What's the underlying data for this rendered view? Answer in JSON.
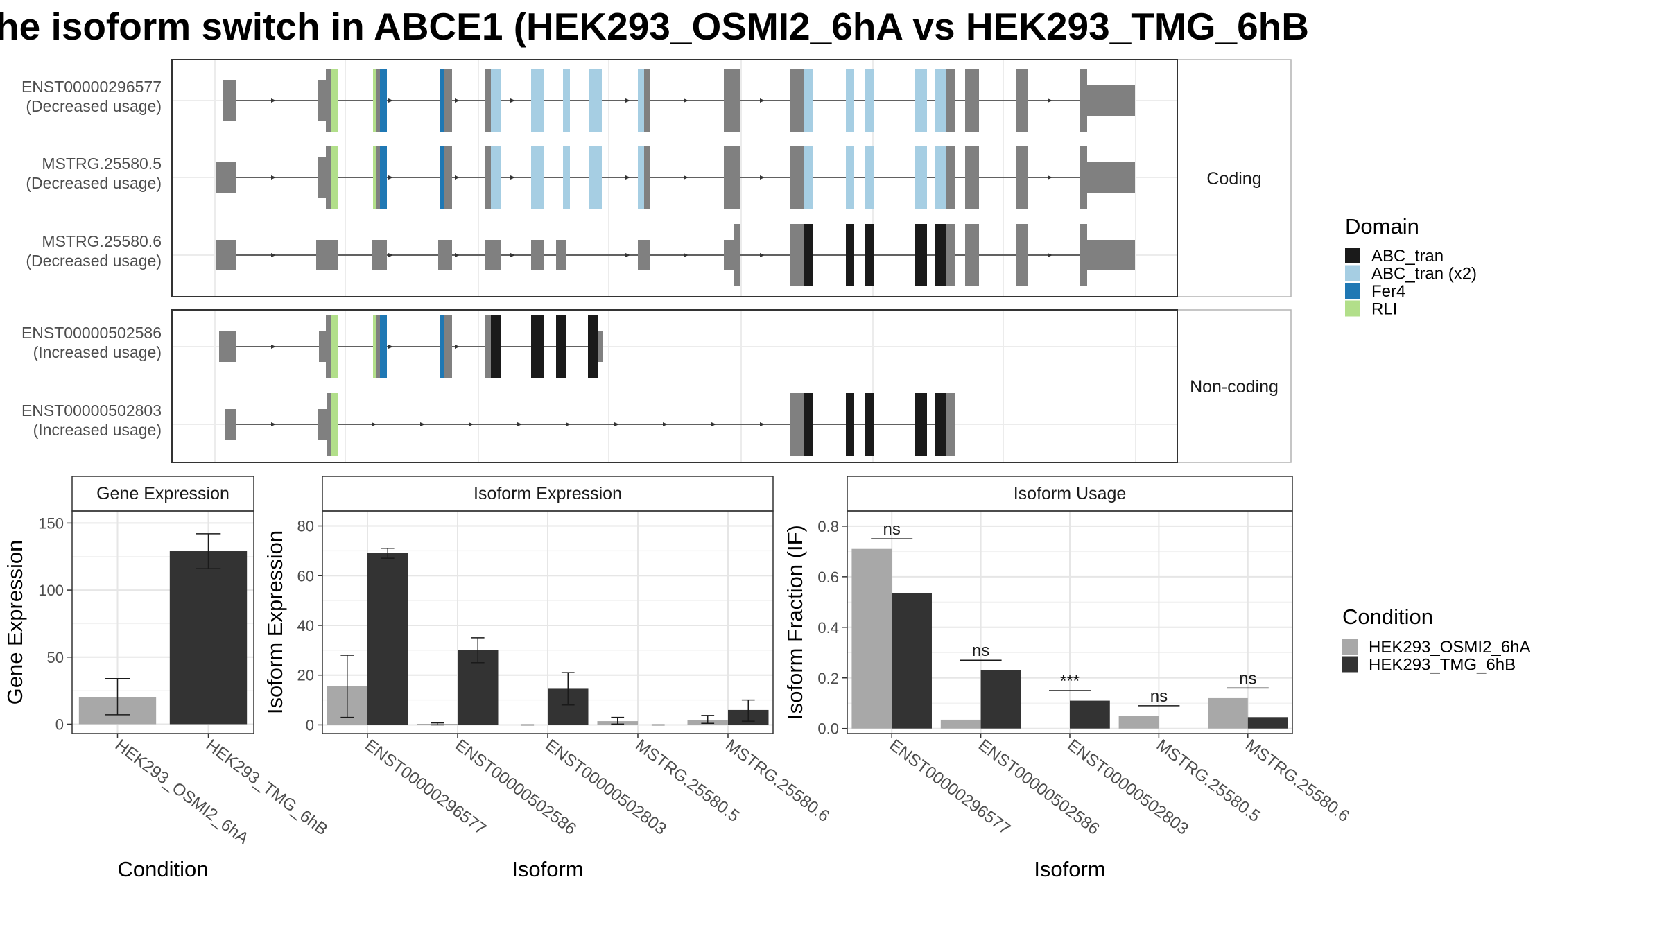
{
  "title": "he isoform switch in ABCE1 (HEK293_OSMI2_6hA vs HEK293_TMG_6hB",
  "colors": {
    "exon": "#808080",
    "ABC_tran": "#1a1a1a",
    "ABC_tran_x2": "#a6cee3",
    "Fer4": "#1f78b4",
    "RLI": "#b2df8a",
    "cond_A": "#a8a8a8",
    "cond_B": "#333333"
  },
  "structure": {
    "facets": [
      "Coding",
      "Non-coding"
    ],
    "transcripts": [
      {
        "id": "ENST00000296577",
        "usage": "(Decreased usage)",
        "facet": "Coding"
      },
      {
        "id": "MSTRG.25580.5",
        "usage": "(Decreased usage)",
        "facet": "Coding"
      },
      {
        "id": "MSTRG.25580.6",
        "usage": "(Decreased usage)",
        "facet": "Coding"
      },
      {
        "id": "ENST00000502586",
        "usage": "(Increased usage)",
        "facet": "Non-coding"
      },
      {
        "id": "ENST00000502803",
        "usage": "(Increased usage)",
        "facet": "Non-coding"
      }
    ]
  },
  "legend_domain": {
    "title": "Domain",
    "items": [
      {
        "label": "ABC_tran",
        "color": "#1a1a1a"
      },
      {
        "label": "ABC_tran (x2)",
        "color": "#a6cee3"
      },
      {
        "label": "Fer4",
        "color": "#1f78b4"
      },
      {
        "label": "RLI",
        "color": "#b2df8a"
      }
    ]
  },
  "legend_condition": {
    "title": "Condition",
    "items": [
      {
        "label": "HEK293_OSMI2_6hA",
        "color": "#a8a8a8"
      },
      {
        "label": "HEK293_TMG_6hB",
        "color": "#333333"
      }
    ]
  },
  "chart_data": [
    {
      "type": "bar",
      "title": "Gene Expression",
      "xlabel": "Condition",
      "ylabel": "Gene Expression",
      "categories": [
        "HEK293_OSMI2_6hA",
        "HEK293_TMG_6hB"
      ],
      "values": [
        20,
        129
      ],
      "errors": [
        [
          7,
          34
        ],
        [
          116,
          142
        ]
      ],
      "ylim": [
        -7,
        159
      ],
      "yticks": [
        0,
        50,
        100,
        150
      ],
      "grid": true
    },
    {
      "type": "bar",
      "title": "Isoform Expression",
      "xlabel": "Isoform",
      "ylabel": "Isoform Expression",
      "categories": [
        "ENST00000296577",
        "ENST00000502586",
        "ENST00000502803",
        "MSTRG.25580.5",
        "MSTRG.25580.6"
      ],
      "series": [
        {
          "name": "HEK293_OSMI2_6hA",
          "values": [
            15.5,
            0.4,
            0,
            1.5,
            2
          ],
          "errors": [
            [
              3,
              28
            ],
            [
              0,
              0.8
            ],
            [
              0,
              0
            ],
            [
              0.3,
              3
            ],
            [
              0.6,
              3.8
            ]
          ]
        },
        {
          "name": "HEK293_TMG_6hB",
          "values": [
            69,
            30,
            14.5,
            0,
            6
          ],
          "errors": [
            [
              67,
              71
            ],
            [
              25,
              35
            ],
            [
              8,
              21
            ],
            [
              0,
              0
            ],
            [
              1.5,
              10
            ]
          ]
        }
      ],
      "ylim": [
        -3.5,
        86
      ],
      "yticks": [
        0,
        20,
        40,
        60,
        80
      ],
      "grid": true
    },
    {
      "type": "bar",
      "title": "Isoform Usage",
      "xlabel": "Isoform",
      "ylabel": "Isoform Fraction (IF)",
      "categories": [
        "ENST00000296577",
        "ENST00000502586",
        "ENST00000502803",
        "MSTRG.25580.5",
        "MSTRG.25580.6"
      ],
      "series": [
        {
          "name": "HEK293_OSMI2_6hA",
          "values": [
            0.71,
            0.035,
            0,
            0.05,
            0.12
          ]
        },
        {
          "name": "HEK293_TMG_6hB",
          "values": [
            0.535,
            0.23,
            0.11,
            0,
            0.045
          ]
        }
      ],
      "significance": [
        "ns",
        "ns",
        "***",
        "ns",
        "ns"
      ],
      "sig_level": [
        0.75,
        0.27,
        0.15,
        0.09,
        0.16
      ],
      "ylim": [
        -0.02,
        0.86
      ],
      "yticks": [
        "0.0",
        "0.2",
        "0.4",
        "0.6",
        "0.8"
      ],
      "grid": true
    }
  ]
}
